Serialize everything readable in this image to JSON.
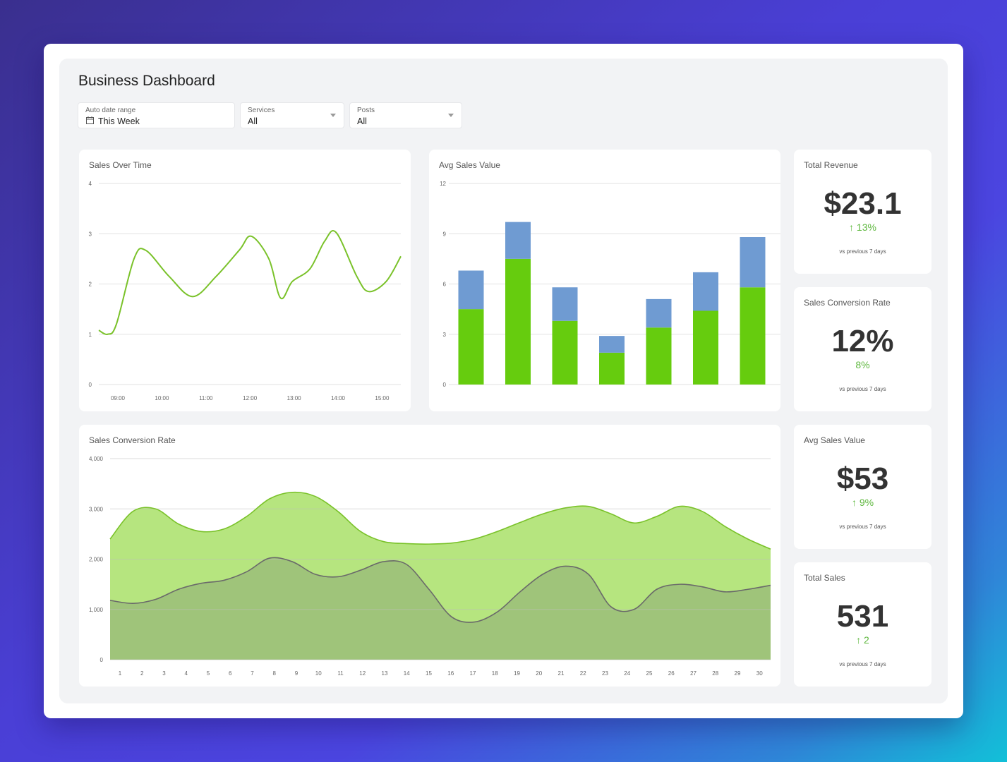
{
  "dashboard": {
    "title": "Business Dashboard",
    "filters": [
      {
        "label": "Auto date range",
        "value": "This Week",
        "icon": "calendar-icon"
      },
      {
        "label": "Services",
        "value": "All",
        "icon": "chevron-down-icon"
      },
      {
        "label": "Posts",
        "value": "All",
        "icon": "chevron-down-icon"
      }
    ]
  },
  "cards": {
    "sales_over_time": {
      "title": "Sales Over Time"
    },
    "avg_sales_chart": {
      "title": "Avg Sales Value"
    },
    "conversion_area": {
      "title": "Sales Conversion Rate"
    }
  },
  "kpis": [
    {
      "title": "Total Revenue",
      "value": "$23.1",
      "change": "↑ 13%",
      "note": "vs previous 7 days"
    },
    {
      "title": "Sales Conversion Rate",
      "value": "12%",
      "change": "8%",
      "note": "vs previous 7 days"
    },
    {
      "title": "Avg Sales Value",
      "value": "$53",
      "change": "↑ 9%",
      "note": "vs previous 7 days"
    },
    {
      "title": "Total Sales",
      "value": "531",
      "change": "↑ 2",
      "note": "vs previous 7 days"
    }
  ],
  "colors": {
    "green": "#66cc0e",
    "blue": "#6f9bd2",
    "line_green": "#7ac22a",
    "area_light": "#b6e57f",
    "area_dark": "#9fc47a",
    "kpi_green": "#5fb83f"
  },
  "chart_data": [
    {
      "type": "line",
      "title": "Sales Over Time",
      "x": [
        "09:00",
        "10:00",
        "11:00",
        "12:00",
        "13:00",
        "14:00",
        "15:00"
      ],
      "ylim": [
        0,
        4
      ],
      "yticks": [
        0,
        1,
        2,
        3,
        4
      ],
      "points": [
        [
          0.0,
          1.08
        ],
        [
          0.15,
          1.0
        ],
        [
          0.3,
          1.2
        ],
        [
          0.6,
          2.5
        ],
        [
          0.8,
          2.67
        ],
        [
          1.2,
          2.15
        ],
        [
          1.6,
          1.75
        ],
        [
          2.0,
          2.15
        ],
        [
          2.4,
          2.68
        ],
        [
          2.6,
          2.95
        ],
        [
          2.9,
          2.5
        ],
        [
          3.1,
          1.72
        ],
        [
          3.3,
          2.05
        ],
        [
          3.6,
          2.3
        ],
        [
          3.85,
          2.85
        ],
        [
          4.05,
          3.02
        ],
        [
          4.4,
          2.15
        ],
        [
          4.6,
          1.85
        ],
        [
          4.9,
          2.05
        ],
        [
          5.15,
          2.55
        ]
      ],
      "grid": true
    },
    {
      "type": "bar",
      "title": "Avg Sales Value",
      "categories": [
        "",
        "",
        "",
        "",
        "",
        "",
        ""
      ],
      "series": [
        {
          "values": [
            4.5,
            7.5,
            3.8,
            1.9,
            3.4,
            4.4,
            5.8
          ]
        },
        {
          "values": [
            2.3,
            2.2,
            2.0,
            1.0,
            1.7,
            2.3,
            3.0
          ]
        }
      ],
      "stacked": true,
      "ylim": [
        0,
        12
      ],
      "yticks": [
        0,
        3,
        6,
        9,
        12
      ],
      "grid": true
    },
    {
      "type": "area",
      "title": "Sales Conversion Rate",
      "x": [
        1,
        2,
        3,
        4,
        5,
        6,
        7,
        8,
        9,
        10,
        11,
        12,
        13,
        14,
        15,
        16,
        17,
        18,
        19,
        20,
        21,
        22,
        23,
        24,
        25,
        26,
        27,
        28,
        29,
        30
      ],
      "series": [
        {
          "values": [
            2400,
            2950,
            3000,
            2700,
            2550,
            2600,
            2850,
            3200,
            3330,
            3250,
            2950,
            2550,
            2350,
            2310,
            2300,
            2320,
            2400,
            2550,
            2730,
            2900,
            3020,
            3050,
            2900,
            2720,
            2850,
            3050,
            2950,
            2650,
            2400,
            2200
          ]
        },
        {
          "values": [
            1180,
            1120,
            1200,
            1400,
            1520,
            1580,
            1750,
            2020,
            1950,
            1700,
            1650,
            1780,
            1950,
            1900,
            1400,
            850,
            750,
            950,
            1350,
            1700,
            1860,
            1700,
            1050,
            1000,
            1400,
            1500,
            1450,
            1350,
            1400,
            1480
          ]
        }
      ],
      "ylim": [
        0,
        4000
      ],
      "yticks": [
        "0",
        "1,000",
        "2,000",
        "3,000",
        "4,000"
      ],
      "grid": true
    }
  ]
}
